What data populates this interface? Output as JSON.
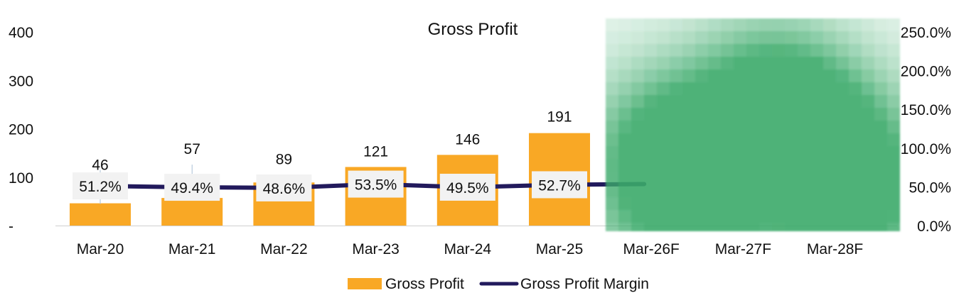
{
  "chart_data": {
    "type": "bar",
    "title": "Gross Profit",
    "categories": [
      "Mar-20",
      "Mar-21",
      "Mar-22",
      "Mar-23",
      "Mar-24",
      "Mar-25",
      "Mar-26F",
      "Mar-27F",
      "Mar-28F"
    ],
    "series": [
      {
        "name": "Gross Profit",
        "type": "bar",
        "axis": "left",
        "values": [
          46,
          57,
          89,
          121,
          146,
          191,
          null,
          null,
          null
        ],
        "labels": [
          "46",
          "57",
          "89",
          "121",
          "146",
          "191",
          "",
          "",
          ""
        ],
        "color": "#F9A825"
      },
      {
        "name": "Gross Profit Margin",
        "type": "line",
        "axis": "right",
        "values": [
          51.2,
          49.4,
          48.6,
          53.5,
          49.5,
          52.7,
          null,
          null,
          null
        ],
        "labels": [
          "51.2%",
          "49.4%",
          "48.6%",
          "53.5%",
          "49.5%",
          "52.7%",
          "",
          "",
          ""
        ],
        "color": "#221A5C"
      }
    ],
    "y_left": {
      "ylim": [
        0,
        400
      ],
      "ticks": [
        "-",
        "100",
        "200",
        "300",
        "400"
      ]
    },
    "y_right": {
      "ylim": [
        0,
        250
      ],
      "ticks": [
        "0.0%",
        "50.0%",
        "100.0%",
        "150.0%",
        "200.0%",
        "250.0%"
      ]
    },
    "xlabel": "",
    "ylabel": "",
    "grid": false,
    "legend": "bottom",
    "obscured_region": "forecast columns covered by green mosaic blur",
    "obscure_color": "#3BAA6A"
  }
}
